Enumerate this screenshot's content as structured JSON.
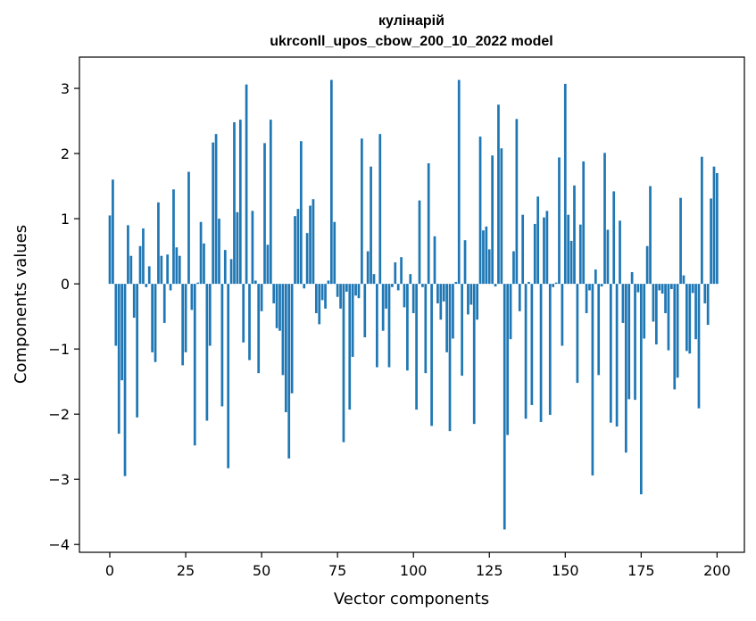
{
  "chart_data": {
    "type": "bar",
    "title": "кулінарій",
    "subtitle": "ukrconll_upos_cbow_200_10_2022 model",
    "xlabel": "Vector components",
    "ylabel": "Components values",
    "xlim": [
      -10,
      209
    ],
    "ylim": [
      -4.12,
      3.48
    ],
    "xticks": [
      0,
      25,
      50,
      75,
      100,
      125,
      150,
      175,
      200
    ],
    "xtick_labels": [
      "0",
      "25",
      "50",
      "75",
      "100",
      "125",
      "150",
      "175",
      "200"
    ],
    "yticks": [
      -4,
      -3,
      -2,
      -1,
      0,
      1,
      2,
      3
    ],
    "ytick_labels": [
      "−4",
      "−3",
      "−2",
      "−1",
      "0",
      "1",
      "2",
      "3"
    ],
    "bar_color": "#1f77b4",
    "grid": false,
    "values": [
      1.05,
      1.6,
      -0.95,
      -2.3,
      -1.48,
      -2.95,
      0.9,
      0.43,
      -0.52,
      -2.05,
      0.58,
      0.85,
      -0.05,
      0.27,
      -1.05,
      -1.2,
      1.25,
      0.43,
      -0.6,
      0.45,
      -0.1,
      1.45,
      0.56,
      0.43,
      -1.25,
      -1.05,
      1.72,
      -0.4,
      -2.48,
      0.02,
      0.95,
      0.62,
      -2.1,
      -0.95,
      2.17,
      2.3,
      1.0,
      -1.88,
      0.52,
      -2.83,
      0.38,
      2.48,
      1.1,
      2.52,
      -0.9,
      3.06,
      -1.17,
      1.12,
      0.05,
      -1.37,
      -0.42,
      2.16,
      0.6,
      2.52,
      -0.3,
      -0.68,
      -0.72,
      -1.4,
      -1.97,
      -2.68,
      -1.68,
      1.04,
      1.15,
      2.19,
      -0.07,
      0.78,
      1.2,
      1.3,
      -0.45,
      -0.62,
      -0.25,
      -0.38,
      0.05,
      3.13,
      0.95,
      -0.2,
      -0.38,
      -2.43,
      -0.12,
      -1.93,
      -1.12,
      -0.18,
      -0.22,
      2.23,
      -0.82,
      0.5,
      1.8,
      0.15,
      -1.28,
      2.3,
      -0.72,
      -0.38,
      -1.28,
      -0.05,
      0.33,
      -0.1,
      0.41,
      -0.36,
      -1.33,
      0.15,
      -0.45,
      -1.93,
      1.28,
      -0.05,
      -1.37,
      1.85,
      -2.18,
      0.73,
      -0.3,
      -0.55,
      -0.27,
      -1.05,
      -2.26,
      -0.84,
      0.03,
      3.13,
      -1.41,
      0.67,
      -0.47,
      -0.32,
      -2.15,
      -0.55,
      2.26,
      0.82,
      0.88,
      0.53,
      1.97,
      -0.04,
      2.75,
      2.08,
      -3.77,
      -2.32,
      -0.85,
      0.5,
      2.53,
      -0.42,
      1.06,
      -2.07,
      0.03,
      -1.86,
      0.92,
      1.34,
      -2.12,
      1.02,
      1.12,
      -2.01,
      -0.05,
      0.02,
      1.94,
      -0.95,
      3.07,
      1.06,
      0.66,
      1.51,
      -1.52,
      0.91,
      1.88,
      -0.45,
      -0.1,
      -2.94,
      0.22,
      -1.4,
      -0.04,
      2.01,
      0.83,
      -2.13,
      1.42,
      -2.19,
      0.97,
      -0.6,
      -2.59,
      -1.77,
      0.18,
      -1.78,
      -0.13,
      -3.23,
      -0.84,
      0.58,
      1.5,
      -0.58,
      -0.93,
      -0.1,
      -0.15,
      -0.45,
      -1.02,
      -0.08,
      -1.62,
      -1.44,
      1.32,
      0.13,
      -1.03,
      -1.07,
      -0.14,
      -0.85,
      -1.91,
      1.95,
      -0.3,
      -0.63,
      1.31,
      1.8,
      1.7
    ]
  }
}
